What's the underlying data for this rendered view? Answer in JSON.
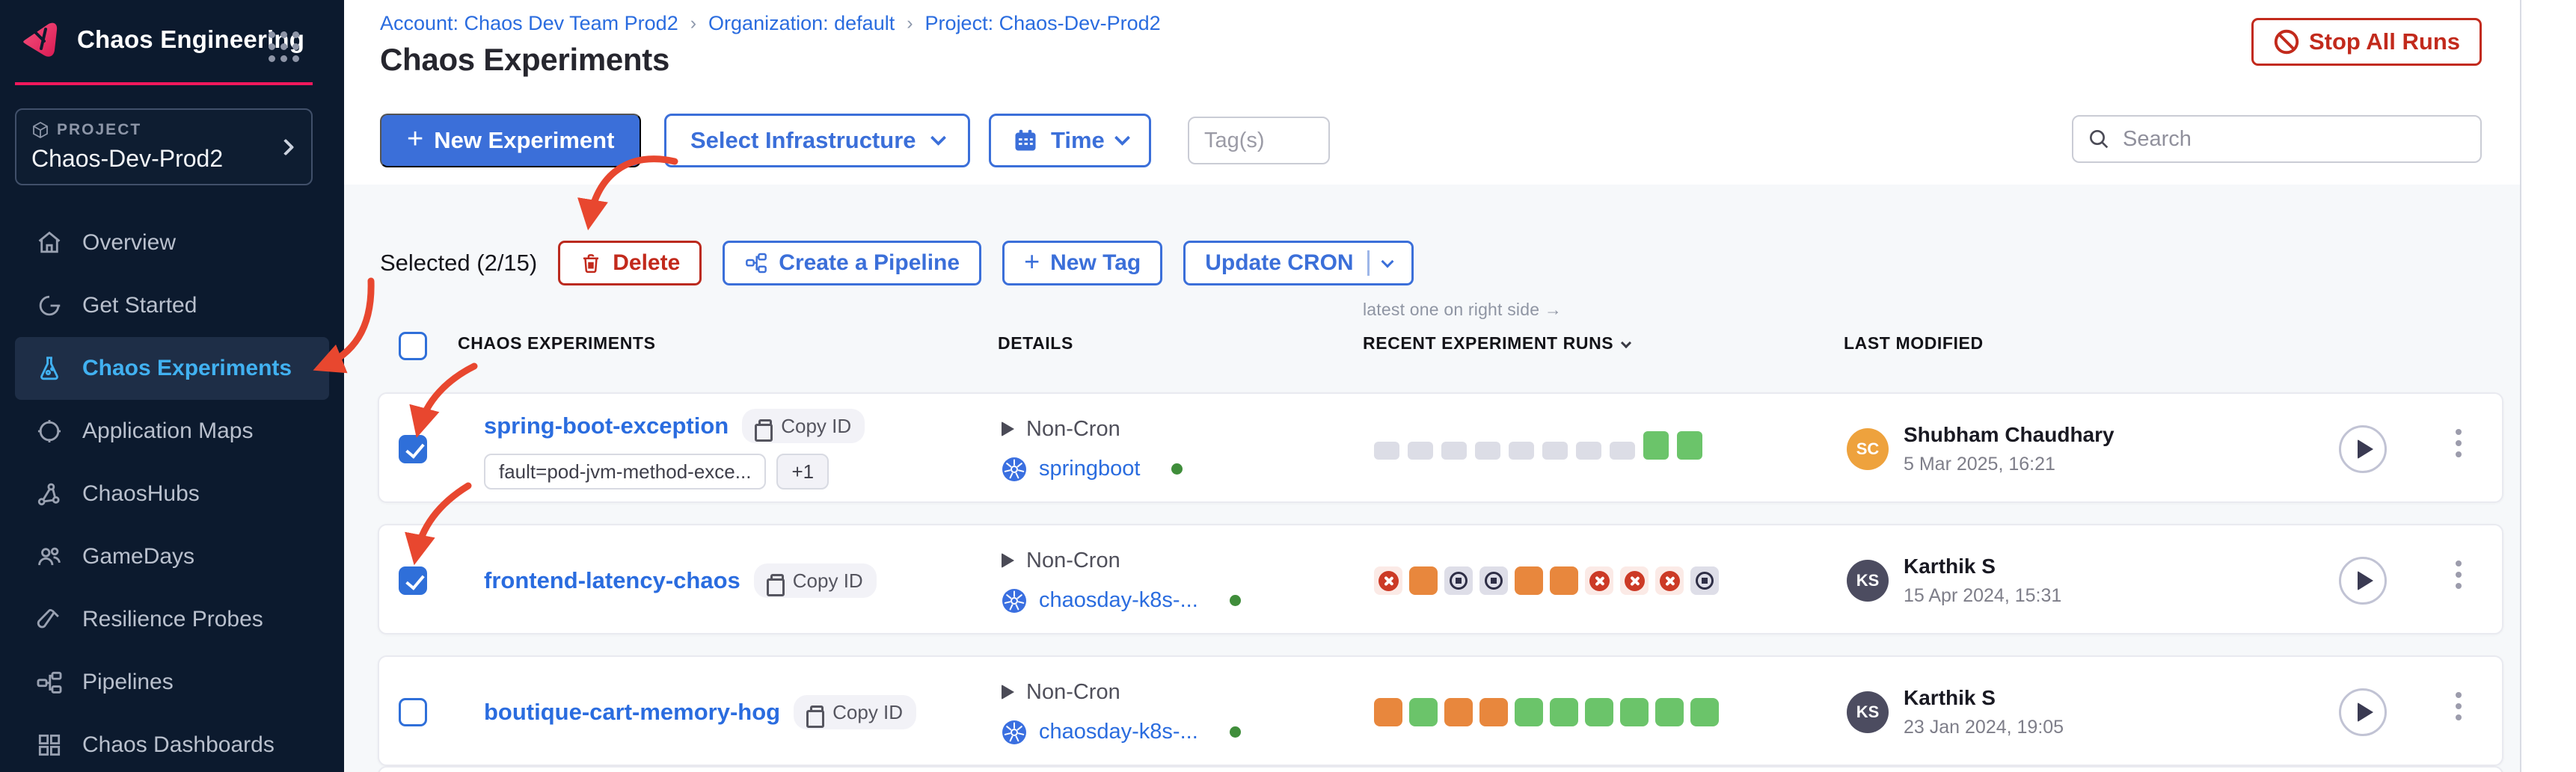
{
  "colors": {
    "accent_blue": "#3B6FD9",
    "link_blue": "#2A6CDF",
    "brand_pink": "#F1185C",
    "danger_red": "#C22A1C",
    "sidebar_bg": "#0C1A2E",
    "active_nav_text": "#41B1F1",
    "run_gray": "#DCDDE6",
    "run_green": "#6BC46A",
    "run_orange": "#E8873D",
    "run_fail_red": "#CC3A26",
    "avatar_orange": "#EEA23D",
    "avatar_slate": "#4C4C60",
    "annotation_red": "#E8472F"
  },
  "sidebar": {
    "brand": "Chaos Engineering",
    "project_label": "PROJECT",
    "project_name": "Chaos-Dev-Prod2",
    "items": [
      {
        "label": "Overview",
        "icon": "home-icon",
        "active": false
      },
      {
        "label": "Get Started",
        "icon": "get-started-icon",
        "active": false
      },
      {
        "label": "Chaos Experiments",
        "icon": "flask-icon",
        "active": true
      },
      {
        "label": "Application Maps",
        "icon": "application-maps-icon",
        "active": false
      },
      {
        "label": "ChaosHubs",
        "icon": "chaoshubs-icon",
        "active": false
      },
      {
        "label": "GameDays",
        "icon": "gamedays-icon",
        "active": false
      },
      {
        "label": "Resilience Probes",
        "icon": "resilience-probes-icon",
        "active": false
      },
      {
        "label": "Pipelines",
        "icon": "pipelines-icon",
        "active": false
      },
      {
        "label": "Chaos Dashboards",
        "icon": "dashboards-icon",
        "active": false
      }
    ]
  },
  "header": {
    "breadcrumb": {
      "account": "Account: Chaos Dev Team Prod2",
      "org": "Organization: default",
      "project": "Project: Chaos-Dev-Prod2",
      "sep": "›"
    },
    "title": "Chaos Experiments",
    "stop_all_runs": "Stop All Runs"
  },
  "toolbar": {
    "new_experiment_plus": "+",
    "new_experiment": "New Experiment",
    "select_infrastructure": "Select Infrastructure",
    "time": "Time",
    "tags_placeholder": "Tag(s)",
    "search_placeholder": "Search"
  },
  "actions": {
    "selected": "Selected (2/15)",
    "delete": "Delete",
    "create_pipeline": "Create a Pipeline",
    "new_tag_plus": "+",
    "new_tag": "New Tag",
    "update_cron": "Update CRON"
  },
  "table": {
    "note": "latest one on right side →",
    "headers": {
      "experiments": "CHAOS EXPERIMENTS",
      "details": "DETAILS",
      "runs": "RECENT EXPERIMENT RUNS",
      "modified": "LAST MODIFIED"
    },
    "rows": [
      {
        "checked": true,
        "name": "spring-boot-exception",
        "copy_id": "Copy ID",
        "tags": [
          "fault=pod-jvm-method-exce...",
          "+1"
        ],
        "schedule": "Non-Cron",
        "infra": "springboot",
        "runs": [
          "empty",
          "empty",
          "empty",
          "empty",
          "empty",
          "empty",
          "empty",
          "empty",
          "passed_bar",
          "passed_bar"
        ],
        "user": {
          "initials": "SC",
          "name": "Shubham Chaudhary",
          "date": "5 Mar 2025, 16:21",
          "color": "#EEA23D"
        }
      },
      {
        "checked": true,
        "name": "frontend-latency-chaos",
        "copy_id": "Copy ID",
        "tags": [],
        "schedule": "Non-Cron",
        "infra": "chaosday-k8s-...",
        "runs": [
          "failed",
          "running",
          "stopped",
          "stopped",
          "running",
          "running",
          "failed",
          "failed",
          "failed",
          "stopped"
        ],
        "user": {
          "initials": "KS",
          "name": "Karthik S",
          "date": "15 Apr 2024, 15:31",
          "color": "#4C4C60"
        }
      },
      {
        "checked": false,
        "name": "boutique-cart-memory-hog",
        "copy_id": "Copy ID",
        "tags": [],
        "schedule": "Non-Cron",
        "infra": "chaosday-k8s-...",
        "runs": [
          "running",
          "passed",
          "running",
          "running",
          "passed",
          "passed",
          "passed",
          "passed",
          "passed",
          "passed"
        ],
        "user": {
          "initials": "KS",
          "name": "Karthik S",
          "date": "23 Jan 2024, 19:05",
          "color": "#4C4C60"
        }
      }
    ]
  }
}
